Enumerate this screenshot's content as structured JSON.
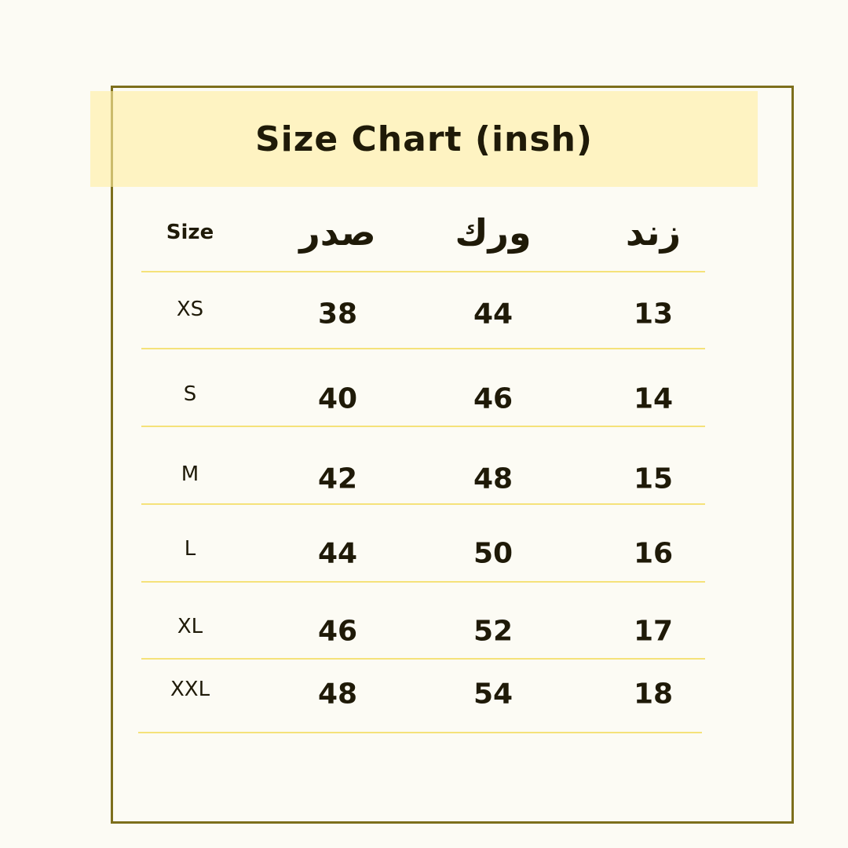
{
  "title": "Size Chart (insh)",
  "colors": {
    "banner": "#fff1b0",
    "border": "#7d6f1c",
    "row_line": "#f5e27a",
    "text": "#1f1a08",
    "background": "#fcfbf4"
  },
  "table": {
    "headers": [
      "Size",
      "صدر",
      "ورك",
      "زند"
    ],
    "rows": [
      [
        "XS",
        "38",
        "44",
        "13"
      ],
      [
        "S",
        "40",
        "46",
        "14"
      ],
      [
        "M",
        "42",
        "48",
        "15"
      ],
      [
        "L",
        "44",
        "50",
        "16"
      ],
      [
        "XL",
        "46",
        "52",
        "17"
      ],
      [
        "XXL",
        "48",
        "54",
        "18"
      ]
    ]
  }
}
